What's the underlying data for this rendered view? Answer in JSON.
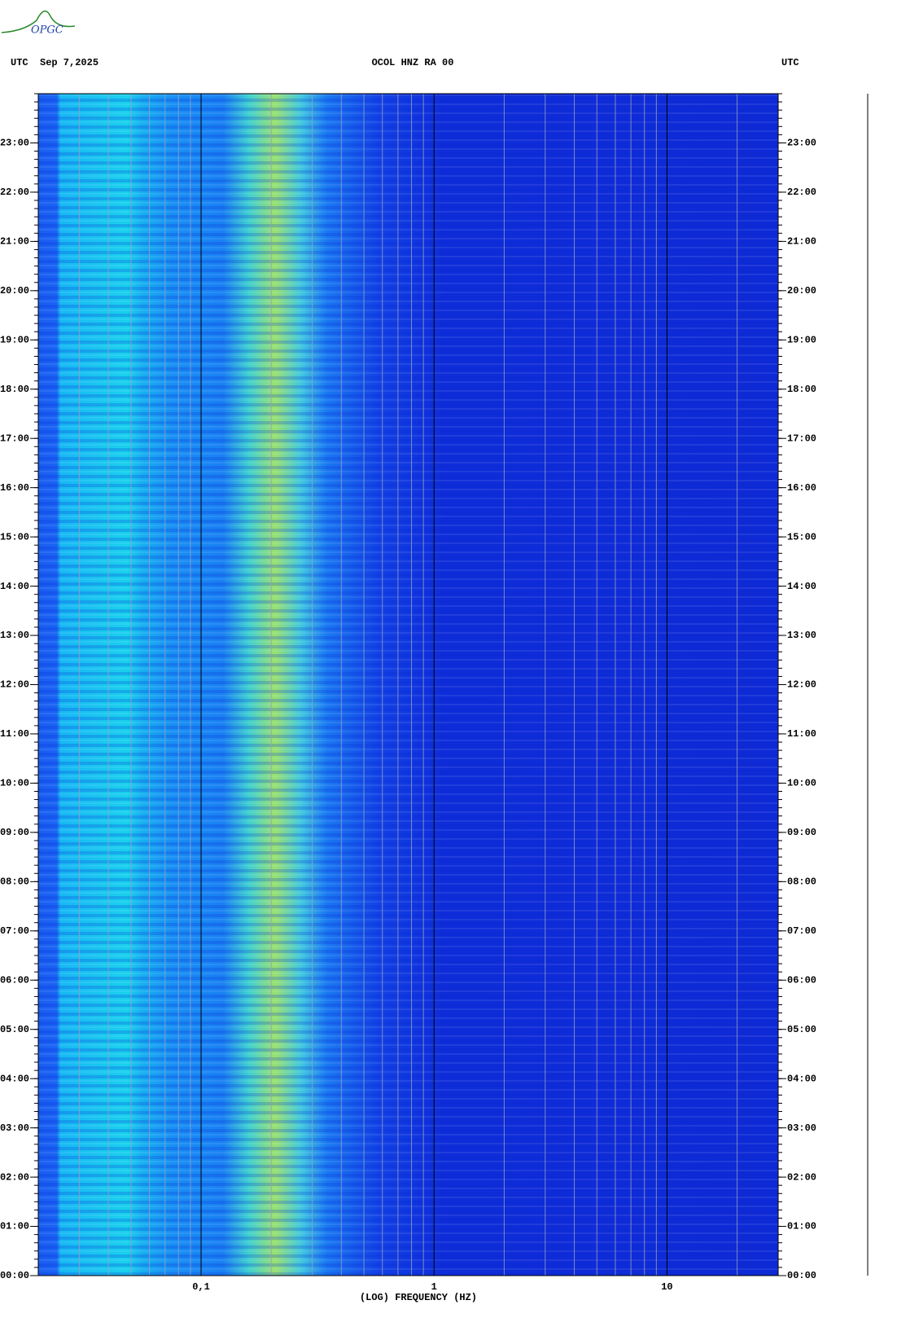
{
  "chart_data": {
    "type": "spectrogram",
    "logo": "OPGC",
    "title": "OCOL HNZ RA 00",
    "left_header": "UTC  Sep 7,2025",
    "right_header": "UTC",
    "xlabel": "(LOG) FREQUENCY (HZ)",
    "xscale": "log",
    "xlim": [
      0.02,
      30
    ],
    "xticks": [
      {
        "value": 0.1,
        "label": "0,1"
      },
      1,
      10
    ],
    "ylim": [
      0,
      24
    ],
    "yticks": [
      {
        "value": 0,
        "label": "00:00"
      },
      {
        "value": 1,
        "label": "01:00"
      },
      {
        "value": 2,
        "label": "02:00"
      },
      {
        "value": 3,
        "label": "03:00"
      },
      {
        "value": 4,
        "label": "04:00"
      },
      {
        "value": 5,
        "label": "05:00"
      },
      {
        "value": 6,
        "label": "06:00"
      },
      {
        "value": 7,
        "label": "07:00"
      },
      {
        "value": 8,
        "label": "08:00"
      },
      {
        "value": 9,
        "label": "09:00"
      },
      {
        "value": 10,
        "label": "10:00"
      },
      {
        "value": 11,
        "label": "11:00"
      },
      {
        "value": 12,
        "label": "12:00"
      },
      {
        "value": 13,
        "label": "13:00"
      },
      {
        "value": 14,
        "label": "14:00"
      },
      {
        "value": 15,
        "label": "15:00"
      },
      {
        "value": 16,
        "label": "16:00"
      },
      {
        "value": 17,
        "label": "17:00"
      },
      {
        "value": 18,
        "label": "18:00"
      },
      {
        "value": 19,
        "label": "19:00"
      },
      {
        "value": 20,
        "label": "20:00"
      },
      {
        "value": 21,
        "label": "21:00"
      },
      {
        "value": 22,
        "label": "22:00"
      },
      {
        "value": 23,
        "label": "23:00"
      }
    ]
  }
}
